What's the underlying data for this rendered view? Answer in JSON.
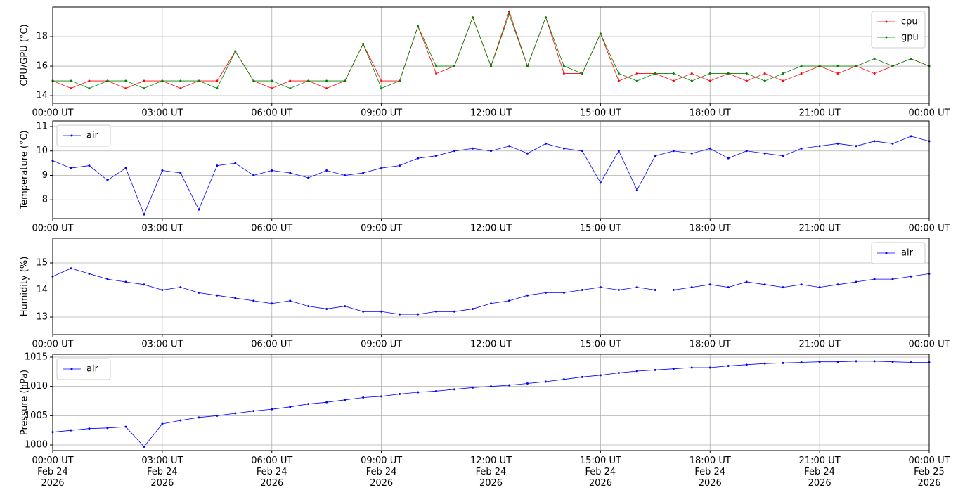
{
  "chart_data": [
    {
      "type": "line",
      "ylabel": "CPU/GPU (°C)",
      "legend": "upper right",
      "grid": true,
      "x": [
        "2026-02-24T00:00",
        "2026-02-24T00:30",
        "2026-02-24T01:00",
        "2026-02-24T01:30",
        "2026-02-24T02:00",
        "2026-02-24T02:30",
        "2026-02-24T03:00",
        "2026-02-24T03:30",
        "2026-02-24T04:00",
        "2026-02-24T04:30",
        "2026-02-24T05:00",
        "2026-02-24T05:30",
        "2026-02-24T06:00",
        "2026-02-24T06:30",
        "2026-02-24T07:00",
        "2026-02-24T07:30",
        "2026-02-24T08:00",
        "2026-02-24T08:30",
        "2026-02-24T09:00",
        "2026-02-24T09:30",
        "2026-02-24T10:00",
        "2026-02-24T10:30",
        "2026-02-24T11:00",
        "2026-02-24T11:30",
        "2026-02-24T12:00",
        "2026-02-24T12:30",
        "2026-02-24T13:00",
        "2026-02-24T13:30",
        "2026-02-24T14:00",
        "2026-02-24T14:30",
        "2026-02-24T15:00",
        "2026-02-24T15:30",
        "2026-02-24T16:00",
        "2026-02-24T16:30",
        "2026-02-24T17:00",
        "2026-02-24T17:30",
        "2026-02-24T18:00",
        "2026-02-24T18:30",
        "2026-02-24T19:00",
        "2026-02-24T19:30",
        "2026-02-24T20:00",
        "2026-02-24T20:30",
        "2026-02-24T21:00",
        "2026-02-24T21:30",
        "2026-02-24T22:00",
        "2026-02-24T22:30",
        "2026-02-24T23:00",
        "2026-02-24T23:30",
        "2026-02-25T00:00"
      ],
      "series": [
        {
          "name": "cpu",
          "color": "#ff0000",
          "values": [
            15,
            14.5,
            15,
            15,
            14.5,
            15,
            15,
            14.5,
            15,
            15,
            17,
            15,
            14.5,
            15,
            15,
            14.5,
            15,
            17.5,
            15,
            15,
            18.7,
            15.5,
            16,
            19.3,
            16,
            19.7,
            16,
            19.3,
            15.5,
            15.5,
            18.2,
            15,
            15.5,
            15.5,
            15,
            15.5,
            15,
            15.5,
            15,
            15.5,
            15,
            15.5,
            16,
            15.5,
            16,
            15.5,
            16,
            16.5,
            16
          ]
        },
        {
          "name": "gpu",
          "color": "#008000",
          "values": [
            15,
            15,
            14.5,
            15,
            15,
            14.5,
            15,
            15,
            15,
            14.5,
            17,
            15,
            15,
            14.5,
            15,
            15,
            15,
            17.5,
            14.5,
            15,
            18.7,
            16,
            16,
            19.3,
            16,
            19.5,
            16,
            19.3,
            16,
            15.5,
            18.2,
            15.5,
            15,
            15.5,
            15.5,
            15,
            15.5,
            15.5,
            15.5,
            15,
            15.5,
            16,
            16,
            16,
            16,
            16.5,
            16,
            16.5,
            16
          ]
        }
      ],
      "xlim": [
        "2026-02-24T00:00",
        "2026-02-25T00:00"
      ],
      "xticks": [
        {
          "value": "2026-02-24T00:00",
          "label": "00:00 UT"
        },
        {
          "value": "2026-02-24T03:00",
          "label": "03:00 UT"
        },
        {
          "value": "2026-02-24T06:00",
          "label": "06:00 UT"
        },
        {
          "value": "2026-02-24T09:00",
          "label": "09:00 UT"
        },
        {
          "value": "2026-02-24T12:00",
          "label": "12:00 UT"
        },
        {
          "value": "2026-02-24T15:00",
          "label": "15:00 UT"
        },
        {
          "value": "2026-02-24T18:00",
          "label": "18:00 UT"
        },
        {
          "value": "2026-02-24T21:00",
          "label": "21:00 UT"
        },
        {
          "value": "2026-02-25T00:00",
          "label": "00:00 UT"
        }
      ],
      "ylim": [
        13.48,
        20.0
      ],
      "yticks": [
        14,
        16,
        18
      ]
    },
    {
      "type": "line",
      "ylabel": "Temperature (°C)",
      "legend": "upper left",
      "grid": true,
      "x": [
        "2026-02-24T00:00",
        "2026-02-24T00:30",
        "2026-02-24T01:00",
        "2026-02-24T01:30",
        "2026-02-24T02:00",
        "2026-02-24T02:30",
        "2026-02-24T03:00",
        "2026-02-24T03:30",
        "2026-02-24T04:00",
        "2026-02-24T04:30",
        "2026-02-24T05:00",
        "2026-02-24T05:30",
        "2026-02-24T06:00",
        "2026-02-24T06:30",
        "2026-02-24T07:00",
        "2026-02-24T07:30",
        "2026-02-24T08:00",
        "2026-02-24T08:30",
        "2026-02-24T09:00",
        "2026-02-24T09:30",
        "2026-02-24T10:00",
        "2026-02-24T10:30",
        "2026-02-24T11:00",
        "2026-02-24T11:30",
        "2026-02-24T12:00",
        "2026-02-24T12:30",
        "2026-02-24T13:00",
        "2026-02-24T13:30",
        "2026-02-24T14:00",
        "2026-02-24T14:30",
        "2026-02-24T15:00",
        "2026-02-24T15:30",
        "2026-02-24T16:00",
        "2026-02-24T16:30",
        "2026-02-24T17:00",
        "2026-02-24T17:30",
        "2026-02-24T18:00",
        "2026-02-24T18:30",
        "2026-02-24T19:00",
        "2026-02-24T19:30",
        "2026-02-24T20:00",
        "2026-02-24T20:30",
        "2026-02-24T21:00",
        "2026-02-24T21:30",
        "2026-02-24T22:00",
        "2026-02-24T22:30",
        "2026-02-24T23:00",
        "2026-02-24T23:30",
        "2026-02-25T00:00"
      ],
      "series": [
        {
          "name": "air",
          "color": "#0000ff",
          "values": [
            9.6,
            9.3,
            9.4,
            8.8,
            9.3,
            7.4,
            9.2,
            9.1,
            7.6,
            9.4,
            9.5,
            9.0,
            9.2,
            9.1,
            8.9,
            9.2,
            9.0,
            9.1,
            9.3,
            9.4,
            9.7,
            9.8,
            10.0,
            10.1,
            10.0,
            10.2,
            9.9,
            10.3,
            10.1,
            10.0,
            8.7,
            10.0,
            8.4,
            9.8,
            10.0,
            9.9,
            10.1,
            9.7,
            10.0,
            9.9,
            9.8,
            10.1,
            10.2,
            10.3,
            10.2,
            10.4,
            10.3,
            10.6,
            10.4
          ]
        }
      ],
      "xlim": [
        "2026-02-24T00:00",
        "2026-02-25T00:00"
      ],
      "xticks": [
        {
          "value": "2026-02-24T00:00",
          "label": "00:00 UT"
        },
        {
          "value": "2026-02-24T03:00",
          "label": "03:00 UT"
        },
        {
          "value": "2026-02-24T06:00",
          "label": "06:00 UT"
        },
        {
          "value": "2026-02-24T09:00",
          "label": "09:00 UT"
        },
        {
          "value": "2026-02-24T12:00",
          "label": "12:00 UT"
        },
        {
          "value": "2026-02-24T15:00",
          "label": "15:00 UT"
        },
        {
          "value": "2026-02-24T18:00",
          "label": "18:00 UT"
        },
        {
          "value": "2026-02-24T21:00",
          "label": "21:00 UT"
        },
        {
          "value": "2026-02-25T00:00",
          "label": "00:00 UT"
        }
      ],
      "ylim": [
        7.23,
        11.23
      ],
      "yticks": [
        8,
        9,
        10,
        11
      ]
    },
    {
      "type": "line",
      "ylabel": "Humidity (%)",
      "legend": "upper right",
      "grid": true,
      "x": [
        "2026-02-24T00:00",
        "2026-02-24T00:30",
        "2026-02-24T01:00",
        "2026-02-24T01:30",
        "2026-02-24T02:00",
        "2026-02-24T02:30",
        "2026-02-24T03:00",
        "2026-02-24T03:30",
        "2026-02-24T04:00",
        "2026-02-24T04:30",
        "2026-02-24T05:00",
        "2026-02-24T05:30",
        "2026-02-24T06:00",
        "2026-02-24T06:30",
        "2026-02-24T07:00",
        "2026-02-24T07:30",
        "2026-02-24T08:00",
        "2026-02-24T08:30",
        "2026-02-24T09:00",
        "2026-02-24T09:30",
        "2026-02-24T10:00",
        "2026-02-24T10:30",
        "2026-02-24T11:00",
        "2026-02-24T11:30",
        "2026-02-24T12:00",
        "2026-02-24T12:30",
        "2026-02-24T13:00",
        "2026-02-24T13:30",
        "2026-02-24T14:00",
        "2026-02-24T14:30",
        "2026-02-24T15:00",
        "2026-02-24T15:30",
        "2026-02-24T16:00",
        "2026-02-24T16:30",
        "2026-02-24T17:00",
        "2026-02-24T17:30",
        "2026-02-24T18:00",
        "2026-02-24T18:30",
        "2026-02-24T19:00",
        "2026-02-24T19:30",
        "2026-02-24T20:00",
        "2026-02-24T20:30",
        "2026-02-24T21:00",
        "2026-02-24T21:30",
        "2026-02-24T22:00",
        "2026-02-24T22:30",
        "2026-02-24T23:00",
        "2026-02-24T23:30",
        "2026-02-25T00:00"
      ],
      "series": [
        {
          "name": "air",
          "color": "#0000ff",
          "values": [
            14.5,
            14.8,
            14.6,
            14.4,
            14.3,
            14.2,
            14.0,
            14.1,
            13.9,
            13.8,
            13.7,
            13.6,
            13.5,
            13.6,
            13.4,
            13.3,
            13.4,
            13.2,
            13.2,
            13.1,
            13.1,
            13.2,
            13.2,
            13.3,
            13.5,
            13.6,
            13.8,
            13.9,
            13.9,
            14.0,
            14.1,
            14.0,
            14.1,
            14.0,
            14.0,
            14.1,
            14.2,
            14.1,
            14.3,
            14.2,
            14.1,
            14.2,
            14.1,
            14.2,
            14.3,
            14.4,
            14.4,
            14.5,
            14.6
          ]
        }
      ],
      "xlim": [
        "2026-02-24T00:00",
        "2026-02-25T00:00"
      ],
      "xticks": [
        {
          "value": "2026-02-24T00:00",
          "label": "00:00 UT"
        },
        {
          "value": "2026-02-24T03:00",
          "label": "03:00 UT"
        },
        {
          "value": "2026-02-24T06:00",
          "label": "06:00 UT"
        },
        {
          "value": "2026-02-24T09:00",
          "label": "09:00 UT"
        },
        {
          "value": "2026-02-24T12:00",
          "label": "12:00 UT"
        },
        {
          "value": "2026-02-24T15:00",
          "label": "15:00 UT"
        },
        {
          "value": "2026-02-24T18:00",
          "label": "18:00 UT"
        },
        {
          "value": "2026-02-24T21:00",
          "label": "21:00 UT"
        },
        {
          "value": "2026-02-25T00:00",
          "label": "00:00 UT"
        }
      ],
      "ylim": [
        12.35,
        15.91
      ],
      "yticks": [
        13,
        14,
        15
      ]
    },
    {
      "type": "line",
      "ylabel": "Pressure (hPa)",
      "legend": "upper left",
      "grid": true,
      "x": [
        "2026-02-24T00:00",
        "2026-02-24T00:30",
        "2026-02-24T01:00",
        "2026-02-24T01:30",
        "2026-02-24T02:00",
        "2026-02-24T02:30",
        "2026-02-24T03:00",
        "2026-02-24T03:30",
        "2026-02-24T04:00",
        "2026-02-24T04:30",
        "2026-02-24T05:00",
        "2026-02-24T05:30",
        "2026-02-24T06:00",
        "2026-02-24T06:30",
        "2026-02-24T07:00",
        "2026-02-24T07:30",
        "2026-02-24T08:00",
        "2026-02-24T08:30",
        "2026-02-24T09:00",
        "2026-02-24T09:30",
        "2026-02-24T10:00",
        "2026-02-24T10:30",
        "2026-02-24T11:00",
        "2026-02-24T11:30",
        "2026-02-24T12:00",
        "2026-02-24T12:30",
        "2026-02-24T13:00",
        "2026-02-24T13:30",
        "2026-02-24T14:00",
        "2026-02-24T14:30",
        "2026-02-24T15:00",
        "2026-02-24T15:30",
        "2026-02-24T16:00",
        "2026-02-24T16:30",
        "2026-02-24T17:00",
        "2026-02-24T17:30",
        "2026-02-24T18:00",
        "2026-02-24T18:30",
        "2026-02-24T19:00",
        "2026-02-24T19:30",
        "2026-02-24T20:00",
        "2026-02-24T20:30",
        "2026-02-24T21:00",
        "2026-02-24T21:30",
        "2026-02-24T22:00",
        "2026-02-24T22:30",
        "2026-02-24T23:00",
        "2026-02-24T23:30",
        "2026-02-25T00:00"
      ],
      "series": [
        {
          "name": "air",
          "color": "#0000ff",
          "values": [
            1002.2,
            1002.5,
            1002.8,
            1002.9,
            1003.1,
            999.7,
            1003.6,
            1004.2,
            1004.7,
            1005.0,
            1005.4,
            1005.8,
            1006.1,
            1006.5,
            1007.0,
            1007.3,
            1007.7,
            1008.1,
            1008.3,
            1008.7,
            1009.0,
            1009.2,
            1009.5,
            1009.8,
            1010.0,
            1010.2,
            1010.5,
            1010.8,
            1011.2,
            1011.6,
            1011.9,
            1012.3,
            1012.6,
            1012.8,
            1013.0,
            1013.2,
            1013.2,
            1013.5,
            1013.7,
            1013.9,
            1014.0,
            1014.1,
            1014.2,
            1014.2,
            1014.3,
            1014.3,
            1014.2,
            1014.1,
            1014.1
          ]
        }
      ],
      "xlim": [
        "2026-02-24T00:00",
        "2026-02-25T00:00"
      ],
      "xticks": [
        {
          "value": "2026-02-24T00:00",
          "label": "00:00 UT\nFeb 24\n2026"
        },
        {
          "value": "2026-02-24T03:00",
          "label": "03:00 UT\nFeb 24\n2026"
        },
        {
          "value": "2026-02-24T06:00",
          "label": "06:00 UT\nFeb 24\n2026"
        },
        {
          "value": "2026-02-24T09:00",
          "label": "09:00 UT\nFeb 24\n2026"
        },
        {
          "value": "2026-02-24T12:00",
          "label": "12:00 UT\nFeb 24\n2026"
        },
        {
          "value": "2026-02-24T15:00",
          "label": "15:00 UT\nFeb 24\n2026"
        },
        {
          "value": "2026-02-24T18:00",
          "label": "18:00 UT\nFeb 24\n2026"
        },
        {
          "value": "2026-02-24T21:00",
          "label": "21:00 UT\nFeb 24\n2026"
        },
        {
          "value": "2026-02-25T00:00",
          "label": "00:00 UT\nFeb 25\n2026"
        }
      ],
      "ylim": [
        999.04,
        1015.48
      ],
      "yticks": [
        1000,
        1005,
        1010,
        1015
      ]
    }
  ]
}
